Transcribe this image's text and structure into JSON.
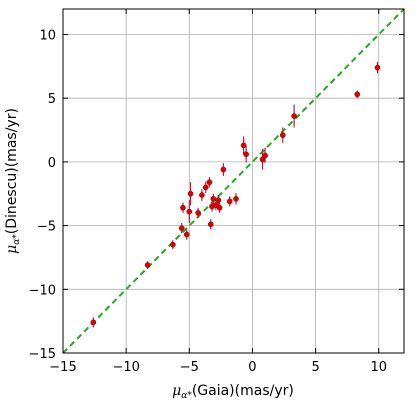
{
  "chart_data": {
    "type": "scatter",
    "xlabel_symbol": "μ",
    "xlabel_subscript": "α*",
    "xlabel_text": "(Gaia)(mas/yr)",
    "ylabel_symbol": "μ",
    "ylabel_subscript": "α*",
    "ylabel_text": "(Dinescu)(mas/yr)",
    "xlim": [
      -15,
      12
    ],
    "ylim": [
      -15,
      12
    ],
    "xticks": [
      -15,
      -10,
      -5,
      0,
      5,
      10
    ],
    "yticks": [
      -15,
      -10,
      -5,
      0,
      5,
      10
    ],
    "xtick_labels": [
      "−15",
      "−10",
      "−5",
      "0",
      "5",
      "10"
    ],
    "ytick_labels": [
      "−15",
      "−10",
      "−5",
      "0",
      "5",
      "10"
    ],
    "grid": true,
    "reference_line": {
      "slope": 1,
      "intercept": 0,
      "style": "dashed",
      "color": "#22aa22"
    },
    "marker_color": "#dd0000",
    "errorbar_color": "#b02040",
    "points": [
      {
        "x": -12.6,
        "y": -12.6,
        "yerr": 0.4
      },
      {
        "x": -8.3,
        "y": -8.1,
        "yerr": 0.3
      },
      {
        "x": -6.3,
        "y": -6.5,
        "yerr": 0.35
      },
      {
        "x": -5.6,
        "y": -5.2,
        "yerr": 0.4
      },
      {
        "x": -5.2,
        "y": -5.7,
        "yerr": 0.4
      },
      {
        "x": -5.5,
        "y": -3.6,
        "yerr": 0.4
      },
      {
        "x": -5.0,
        "y": -3.9,
        "yerr": 0.9
      },
      {
        "x": -4.9,
        "y": -2.5,
        "yerr": 0.9
      },
      {
        "x": -4.3,
        "y": -4.0,
        "yerr": 0.4
      },
      {
        "x": -4.0,
        "y": -2.6,
        "yerr": 0.45
      },
      {
        "x": -3.7,
        "y": -2.0,
        "yerr": 0.45
      },
      {
        "x": -3.4,
        "y": -1.6,
        "yerr": 0.4
      },
      {
        "x": -3.3,
        "y": -4.9,
        "yerr": 0.4
      },
      {
        "x": -3.2,
        "y": -3.5,
        "yerr": 0.4
      },
      {
        "x": -3.1,
        "y": -2.9,
        "yerr": 0.4
      },
      {
        "x": -2.9,
        "y": -3.4,
        "yerr": 0.4
      },
      {
        "x": -2.7,
        "y": -3.0,
        "yerr": 0.4
      },
      {
        "x": -2.6,
        "y": -3.6,
        "yerr": 0.4
      },
      {
        "x": -2.3,
        "y": -0.6,
        "yerr": 0.5
      },
      {
        "x": -1.8,
        "y": -3.1,
        "yerr": 0.4
      },
      {
        "x": -1.3,
        "y": -2.9,
        "yerr": 0.45
      },
      {
        "x": -0.7,
        "y": 1.3,
        "yerr": 0.7
      },
      {
        "x": -0.5,
        "y": 0.6,
        "yerr": 0.65
      },
      {
        "x": 0.8,
        "y": 0.2,
        "yerr": 0.8
      },
      {
        "x": 1.0,
        "y": 0.5,
        "yerr": 0.6
      },
      {
        "x": 2.4,
        "y": 2.1,
        "yerr": 0.6
      },
      {
        "x": 3.3,
        "y": 3.6,
        "yerr": 0.9
      },
      {
        "x": 8.3,
        "y": 5.3,
        "yerr": 0.3
      },
      {
        "x": 9.9,
        "y": 7.4,
        "yerr": 0.45
      }
    ]
  }
}
